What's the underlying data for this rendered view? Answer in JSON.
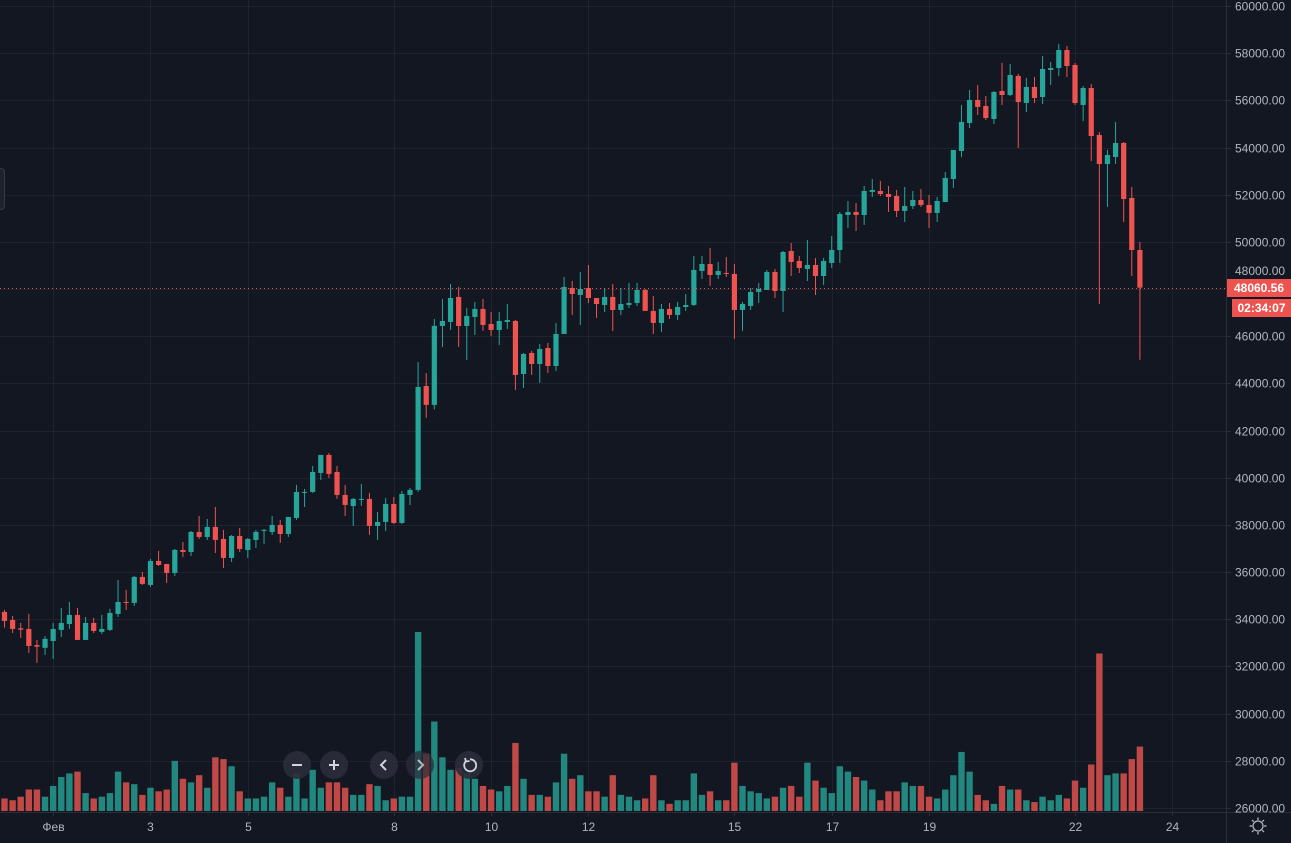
{
  "colors": {
    "background": "#131722",
    "grid": "#1f2330",
    "up": "#26a69a",
    "down": "#ef5350",
    "volume_up": "#22877f",
    "volume_down": "#c04846",
    "axis_text": "#b2b5be"
  },
  "chart_data": {
    "type": "candlestick",
    "title": "",
    "price_axis": {
      "ylim": [
        26000,
        60000
      ],
      "tick_labels": [
        "60000.00",
        "58000.00",
        "56000.00",
        "54000.00",
        "52000.00",
        "50000.00",
        "48000.00",
        "46000.00",
        "44000.00",
        "42000.00",
        "40000.00",
        "38000.00",
        "36000.00",
        "34000.00",
        "32000.00",
        "30000.00",
        "28000.00",
        "26000.00"
      ],
      "side": "right"
    },
    "time_axis": {
      "ticks": [
        {
          "label": "Фев",
          "candle": 6
        },
        {
          "label": "3",
          "candle": 18
        },
        {
          "label": "5",
          "candle": 30
        },
        {
          "label": "8",
          "candle": 48
        },
        {
          "label": "10",
          "candle": 60
        },
        {
          "label": "12",
          "candle": 72
        },
        {
          "label": "15",
          "candle": 90
        },
        {
          "label": "17",
          "candle": 102
        },
        {
          "label": "19",
          "candle": 114
        },
        {
          "label": "22",
          "candle": 132
        },
        {
          "label": "24",
          "candle": 144
        }
      ]
    },
    "grid": true,
    "ohlc_columns": [
      "open",
      "high",
      "low",
      "close"
    ],
    "candles": [
      [
        34310,
        34400,
        33650,
        33930
      ],
      [
        33970,
        34140,
        33420,
        33590
      ],
      [
        33620,
        33845,
        33210,
        33560
      ],
      [
        33590,
        34230,
        32575,
        32870
      ],
      [
        32910,
        33125,
        32150,
        32840
      ],
      [
        32790,
        33290,
        32490,
        33170
      ],
      [
        33080,
        33845,
        32320,
        33590
      ],
      [
        33550,
        34480,
        33250,
        33845
      ],
      [
        33800,
        34735,
        33590,
        34185
      ],
      [
        34185,
        34480,
        33125,
        33125
      ],
      [
        33125,
        34100,
        33125,
        33845
      ],
      [
        33845,
        34060,
        33420,
        33505
      ],
      [
        33465,
        34185,
        33380,
        33590
      ],
      [
        33550,
        34440,
        33505,
        34270
      ],
      [
        34227,
        35669,
        34100,
        34735
      ],
      [
        34735,
        35245,
        34400,
        34695
      ],
      [
        34695,
        35838,
        34566,
        35796
      ],
      [
        35796,
        36008,
        35457,
        35500
      ],
      [
        35457,
        36559,
        35372,
        36474
      ],
      [
        36474,
        36898,
        36262,
        36304
      ],
      [
        36347,
        36347,
        35541,
        35965
      ],
      [
        35965,
        36982,
        35838,
        36940
      ],
      [
        36940,
        37280,
        36643,
        36855
      ],
      [
        36855,
        37745,
        36686,
        37703
      ],
      [
        37703,
        38381,
        37406,
        37491
      ],
      [
        37491,
        38254,
        37364,
        37915
      ],
      [
        37915,
        38763,
        36813,
        37364
      ],
      [
        37406,
        37788,
        36177,
        36601
      ],
      [
        36601,
        37576,
        36431,
        37533
      ],
      [
        37533,
        37873,
        36855,
        36982
      ],
      [
        36940,
        37449,
        36601,
        37406
      ],
      [
        37364,
        37788,
        37025,
        37703
      ],
      [
        37745,
        37830,
        37195,
        37788
      ],
      [
        37703,
        38381,
        37576,
        38000
      ],
      [
        38000,
        38212,
        37237,
        37618
      ],
      [
        37618,
        38339,
        37491,
        38339
      ],
      [
        38296,
        39696,
        38212,
        39399
      ],
      [
        39357,
        39526,
        38763,
        39399
      ],
      [
        39399,
        40501,
        39357,
        40246
      ],
      [
        40204,
        40967,
        39907,
        40967
      ],
      [
        40967,
        41052,
        39992,
        40162
      ],
      [
        40246,
        40501,
        39102,
        39272
      ],
      [
        39272,
        39696,
        38381,
        38848
      ],
      [
        38805,
        39145,
        37958,
        39102
      ],
      [
        39060,
        39738,
        38805,
        39102
      ],
      [
        39102,
        39357,
        37576,
        37958
      ],
      [
        37958,
        38551,
        37364,
        38127
      ],
      [
        38127,
        39145,
        37745,
        38890
      ],
      [
        38890,
        39187,
        38042,
        38085
      ],
      [
        38085,
        39441,
        38042,
        39314
      ],
      [
        39272,
        39568,
        38848,
        39484
      ],
      [
        39484,
        44910,
        39400,
        43850
      ],
      [
        43890,
        44440,
        42540,
        43090
      ],
      [
        43090,
        46730,
        42900,
        46440
      ],
      [
        46436,
        47580,
        45545,
        46647
      ],
      [
        46605,
        48216,
        46266,
        47622
      ],
      [
        47665,
        48089,
        45545,
        46436
      ],
      [
        46436,
        47199,
        44994,
        46859
      ],
      [
        46817,
        47453,
        46054,
        47156
      ],
      [
        47156,
        47580,
        46224,
        46478
      ],
      [
        46520,
        47029,
        46012,
        46266
      ],
      [
        46266,
        47029,
        45630,
        46647
      ],
      [
        46605,
        47368,
        46309,
        46690
      ],
      [
        46647,
        46690,
        43723,
        44358
      ],
      [
        44401,
        45291,
        43807,
        45249
      ],
      [
        45291,
        45376,
        44358,
        44825
      ],
      [
        44825,
        45672,
        44020,
        45460
      ],
      [
        45503,
        45715,
        44443,
        44740
      ],
      [
        44740,
        46563,
        44528,
        46097
      ],
      [
        46097,
        48513,
        46097,
        48089
      ],
      [
        48046,
        48343,
        46902,
        47792
      ],
      [
        47750,
        48725,
        46478,
        48004
      ],
      [
        48046,
        49021,
        47410,
        47622
      ],
      [
        47622,
        47622,
        46775,
        47368
      ],
      [
        47326,
        48046,
        47029,
        47665
      ],
      [
        47665,
        48216,
        46224,
        47114
      ],
      [
        47114,
        48046,
        46902,
        47368
      ],
      [
        47326,
        48258,
        47199,
        47410
      ],
      [
        47410,
        48258,
        47283,
        47962
      ],
      [
        47962,
        48004,
        47072,
        47072
      ],
      [
        47072,
        47707,
        46097,
        46563
      ],
      [
        46563,
        47368,
        46181,
        47156
      ],
      [
        47156,
        47410,
        46732,
        46902
      ],
      [
        46902,
        47453,
        46690,
        47241
      ],
      [
        47241,
        47792,
        47072,
        47326
      ],
      [
        47326,
        49403,
        47283,
        48810
      ],
      [
        48767,
        49403,
        48428,
        49064
      ],
      [
        49064,
        49742,
        48131,
        48597
      ],
      [
        48597,
        49149,
        48428,
        48767
      ],
      [
        48682,
        49360,
        48513,
        48640
      ],
      [
        48640,
        49064,
        45884,
        47114
      ],
      [
        47114,
        47453,
        46224,
        47368
      ],
      [
        47283,
        48046,
        47114,
        47877
      ],
      [
        47877,
        48258,
        47410,
        48004
      ],
      [
        47962,
        48810,
        47962,
        48725
      ],
      [
        48725,
        48852,
        47622,
        47919
      ],
      [
        47919,
        49615,
        47029,
        49572
      ],
      [
        49615,
        49954,
        48555,
        49149
      ],
      [
        49191,
        49403,
        48682,
        48894
      ],
      [
        48852,
        50081,
        48343,
        49021
      ],
      [
        49021,
        49318,
        47750,
        48555
      ],
      [
        48555,
        49318,
        48173,
        49191
      ],
      [
        49106,
        50251,
        48894,
        49657
      ],
      [
        49657,
        51268,
        49106,
        51183
      ],
      [
        51141,
        51734,
        50590,
        51268
      ],
      [
        51268,
        51649,
        50462,
        51141
      ],
      [
        51141,
        52370,
        50717,
        52158
      ],
      [
        52116,
        52667,
        51904,
        52201
      ],
      [
        52158,
        52582,
        51946,
        52031
      ],
      [
        52031,
        52370,
        51268,
        51904
      ],
      [
        51946,
        52201,
        51056,
        51311
      ],
      [
        51311,
        52328,
        50844,
        51522
      ],
      [
        51522,
        52158,
        51395,
        51777
      ],
      [
        51777,
        52243,
        51480,
        51565
      ],
      [
        51565,
        51988,
        50590,
        51226
      ],
      [
        51226,
        51904,
        50844,
        51734
      ],
      [
        51692,
        52963,
        51692,
        52709
      ],
      [
        52667,
        53896,
        52285,
        53896
      ],
      [
        53854,
        55804,
        53599,
        55083
      ],
      [
        55041,
        56440,
        54829,
        56016
      ],
      [
        56016,
        56652,
        55380,
        55719
      ],
      [
        55761,
        56185,
        55168,
        55253
      ],
      [
        55210,
        56397,
        55000,
        56355
      ],
      [
        56397,
        57584,
        55804,
        56228
      ],
      [
        56228,
        57542,
        56185,
        57075
      ],
      [
        57033,
        57118,
        53981,
        55931
      ],
      [
        55889,
        56948,
        55507,
        56567
      ],
      [
        56567,
        56991,
        55888,
        56101
      ],
      [
        56143,
        57881,
        55846,
        57330
      ],
      [
        57287,
        57626,
        56652,
        57372
      ],
      [
        57372,
        58390,
        57033,
        58135
      ],
      [
        58135,
        58305,
        56991,
        57457
      ],
      [
        57499,
        57584,
        55804,
        55888
      ],
      [
        55804,
        56609,
        55125,
        56524
      ],
      [
        56524,
        56694,
        53430,
        54490
      ],
      [
        54532,
        54659,
        47368,
        53303
      ],
      [
        53303,
        53896,
        51480,
        53684
      ],
      [
        53599,
        55083,
        53303,
        54193
      ],
      [
        54193,
        54235,
        50844,
        51819
      ],
      [
        51862,
        52328,
        48555,
        49657
      ],
      [
        49657,
        49997,
        45000,
        48060.56
      ]
    ],
    "volume_relative": [
      7,
      6,
      8,
      12,
      12,
      8,
      14,
      19,
      21,
      22,
      10,
      7,
      8,
      10,
      22,
      16,
      15,
      9,
      13,
      11,
      12,
      28,
      18,
      16,
      20,
      13,
      30,
      29,
      25,
      11,
      7,
      7,
      8,
      16,
      13,
      8,
      21,
      7,
      23,
      13,
      16,
      16,
      13,
      9,
      9,
      15,
      14,
      6,
      7,
      8,
      8,
      100,
      32,
      50,
      30,
      23,
      24,
      21,
      18,
      14,
      12,
      11,
      14,
      38,
      18,
      9,
      9,
      8,
      16,
      32,
      18,
      20,
      11,
      11,
      8,
      20,
      9,
      8,
      6,
      7,
      20,
      6,
      4,
      6,
      6,
      21,
      9,
      11,
      6,
      6,
      27,
      14,
      11,
      10,
      7,
      8,
      13,
      14,
      8,
      27,
      17,
      13,
      10,
      25,
      22,
      19,
      17,
      12,
      6,
      11,
      11,
      16,
      14,
      14,
      8,
      7,
      12,
      20,
      33,
      22,
      9,
      6,
      4,
      14,
      12,
      12,
      6,
      5,
      8,
      6,
      9,
      7,
      17,
      13,
      26,
      88,
      20,
      21,
      21,
      29,
      36
    ],
    "last_price": 48060.56,
    "last_price_label": "48060.56",
    "bar_countdown": "02:34:07"
  },
  "controls": {
    "zoom_out_icon": "minus-icon",
    "zoom_in_icon": "plus-icon",
    "scroll_left_icon": "chevron-left-icon",
    "scroll_right_icon": "chevron-right-icon",
    "reset_icon": "reset-icon",
    "settings_icon": "gear-icon"
  }
}
